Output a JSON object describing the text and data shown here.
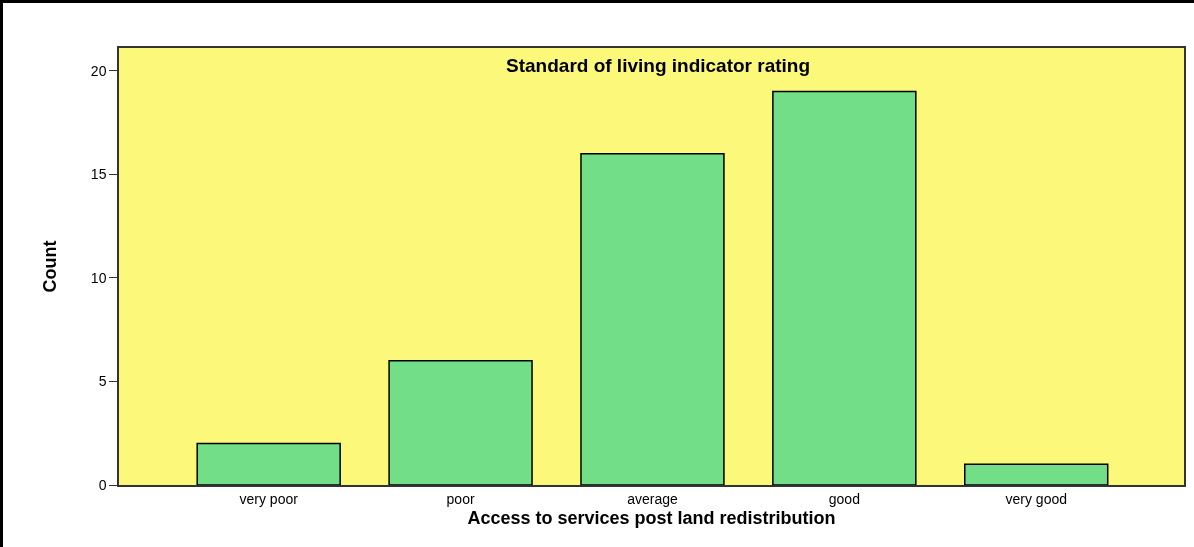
{
  "chart_data": {
    "type": "bar",
    "title": "Standard of living indicator rating",
    "xlabel": "Access to services post land redistribution",
    "ylabel": "Count",
    "categories": [
      "very poor",
      "poor",
      "average",
      "good",
      "very good"
    ],
    "values": [
      2,
      6,
      16,
      19,
      1
    ],
    "color": "#72de87",
    "ylim": [
      0,
      21.1
    ],
    "yticks": [
      0,
      5,
      10,
      15,
      20
    ],
    "grid": false
  }
}
